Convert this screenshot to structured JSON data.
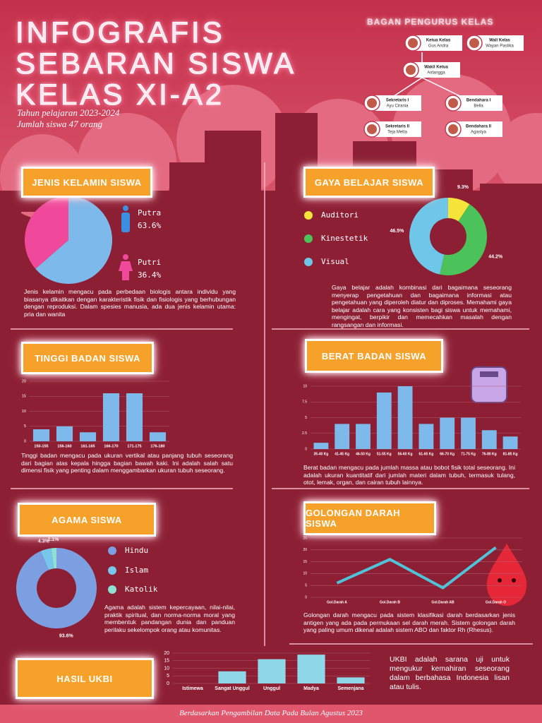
{
  "header": {
    "title_lines": [
      "INFOGRAFIS",
      "SEBARAN SISWA",
      "KELAS XI-A2"
    ],
    "subtitle_lines": [
      "Tahun pelajaran 2023-2024",
      "Jumlah siswa 47 orang"
    ]
  },
  "org_chart": {
    "title": "BAGAN PENGURUS KELAS",
    "nodes": [
      {
        "role": "Ketua Kelas",
        "name": "Gus Andra"
      },
      {
        "role": "Wali Kelas",
        "name": "Wayan Pastika"
      },
      {
        "role": "Wakil Ketua",
        "name": "Airlangga"
      },
      {
        "role": "Sekretaris I",
        "name": "Ayu Cirania"
      },
      {
        "role": "Bendahara I",
        "name": "Bella"
      },
      {
        "role": "Sekretaris II",
        "name": "Teja Metta"
      },
      {
        "role": "Bendahara II",
        "name": "Agastya"
      }
    ]
  },
  "chart_data": [
    {
      "type": "pie",
      "title": "JENIS KELAMIN SISWA",
      "categories": [
        "Putra",
        "Putri"
      ],
      "values": [
        63.6,
        36.4
      ],
      "value_labels": [
        "63.6%",
        "36.4%"
      ],
      "colors": [
        "#7db9ea",
        "#f0489a"
      ],
      "description": "Jenis kelamin mengacu pada perbedaan biologis antara individu yang biasanya dikaitkan dengan karakteristik fisik dan fisiologis yang berhubungan dengan reproduksi. Dalam spesies manusia, ada dua jenis kelamin utama: pria dan wanita"
    },
    {
      "type": "donut",
      "title": "GAYA BELAJAR SISWA",
      "categories": [
        "Auditori",
        "Kinestetik",
        "Visual"
      ],
      "values": [
        9.3,
        44.2,
        46.5
      ],
      "value_labels": [
        "9.3%",
        "44.2%",
        "46.5%"
      ],
      "colors": [
        "#f7e43b",
        "#4cc35a",
        "#6ec6e8"
      ],
      "description": "Gaya belajar adalah kombinasi dari bagaimana seseorang menyerap pengetahuan dan bagaimana informasi atau pengetahuan yang diperoleh diatur dan diproses. Memahami gaya belajar adalah cara yang konsisten bagi siswa untuk memahami, mengingat, berpikir dan memecahkan masalah dengan rangsangan dan informasi."
    },
    {
      "type": "bar",
      "title": "TINGGI BADAN SISWA",
      "categories": [
        "150-155",
        "156-160",
        "161-165",
        "166-170",
        "171-175",
        "176-180"
      ],
      "values": [
        4,
        5,
        3,
        16,
        16,
        3
      ],
      "color": "#7db9ea",
      "ylim": [
        0,
        20
      ],
      "yticks": [
        0,
        5,
        10,
        15,
        20
      ],
      "grid": true,
      "description": "Tinggi badan mengacu pada ukuran vertikal atau panjang tubuh seseorang dari bagian atas kepala hingga bagian bawah kaki. Ini adalah salah satu dimensi fisik yang penting dalam menggambarkan ukuran tubuh seseorang."
    },
    {
      "type": "bar",
      "title": "BERAT BADAN SISWA",
      "categories": [
        "35-40 Kg",
        "41-45 Kg",
        "46-50 Kg",
        "51-55 Kg",
        "56-60 Kg",
        "61-65 Kg",
        "66-70 Kg",
        "71-75 Kg",
        "76-80 Kg",
        "81-85 Kg"
      ],
      "values": [
        1,
        4,
        4,
        9,
        10,
        4,
        5,
        5,
        3,
        2
      ],
      "color": "#7db9ea",
      "ylim": [
        0,
        10
      ],
      "yticks": [
        0,
        2.5,
        5,
        7.5,
        10
      ],
      "grid": true,
      "description": "Berat badan mengacu pada jumlah massa atau bobot fisik total seseorang. Ini adalah ukuran kuantitatif dari jumlah materi dalam tubuh, termasuk tulang, otot, lemak, organ, dan cairan tubuh lainnya."
    },
    {
      "type": "donut",
      "title": "AGAMA SISWA",
      "categories": [
        "Hindu",
        "Islam",
        "Katolik"
      ],
      "values": [
        93.6,
        4.3,
        2.1
      ],
      "value_labels": [
        "93.6%",
        "4.3%",
        "2.1%"
      ],
      "colors": [
        "#7b9fe0",
        "#77c7ec",
        "#8fe0d4"
      ],
      "description": "Agama adalah sistem kepercayaan, nilai-nilai, praktik spiritual, dan norma-norma moral yang membentuk pandangan dunia dan panduan perilaku sekelompok orang atau komunitas."
    },
    {
      "type": "line",
      "title": "GOLONGAN DARAH SISWA",
      "categories": [
        "Gol.Darah A",
        "Gol.Darah B",
        "Gol.Darah AB",
        "Gol.Darah O"
      ],
      "values": [
        6,
        16,
        4,
        21
      ],
      "color": "#4fc3d9",
      "ylim": [
        0,
        25
      ],
      "yticks": [
        0,
        5,
        10,
        15,
        20,
        25
      ],
      "grid": true,
      "description": "Golongan darah mengacu pada sistem klasifikasi darah berdasarkan jenis antigen yang ada pada permukaan sel darah merah. Sistem golongan darah yang paling umum dikenal adalah sistem ABO dan faktor Rh (Rhesus)."
    },
    {
      "type": "bar",
      "title": "HASIL UKBI",
      "categories": [
        "Istimewa",
        "Sangat Unggul",
        "Unggul",
        "Madya",
        "Semenjana"
      ],
      "values": [
        0,
        8,
        16,
        19,
        4
      ],
      "color": "#8fd8ea",
      "ylim": [
        0,
        20
      ],
      "yticks": [
        0,
        5,
        10,
        15,
        20
      ],
      "grid": true,
      "description": "UKBI adalah sarana uji untuk mengukur kemahiran seseorang dalam berbahasa Indonesia lisan atau tulis."
    }
  ],
  "footer": "Berdasarkan Pengambilan Data Pada Bulan Agustus 2023"
}
